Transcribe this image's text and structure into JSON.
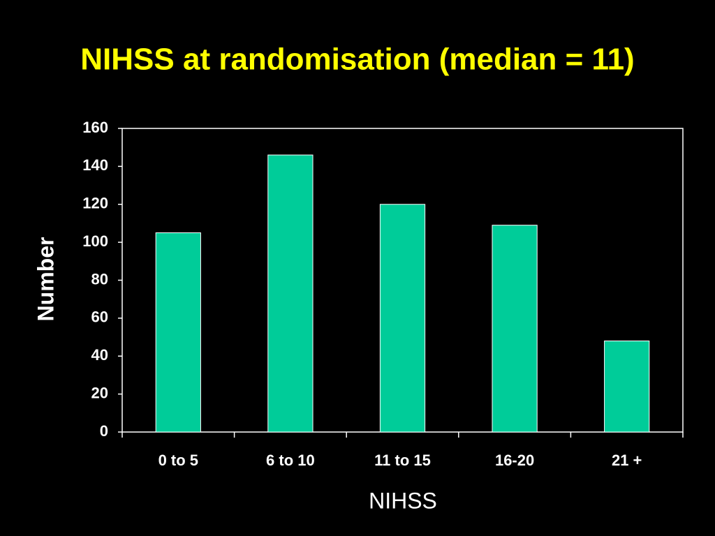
{
  "chart_data": {
    "type": "bar",
    "title": "NIHSS at randomisation (median = 11)",
    "x_label": "NIHSS",
    "y_label": "Number",
    "categories": [
      "0 to 5",
      "6 to 10",
      "11 to 15",
      "16-20",
      "21 +"
    ],
    "values": [
      105,
      146,
      120,
      109,
      48
    ],
    "color": "#00cc99",
    "ylim": [
      0,
      160
    ],
    "yticks": [
      0,
      20,
      40,
      60,
      80,
      100,
      120,
      140,
      160
    ]
  }
}
